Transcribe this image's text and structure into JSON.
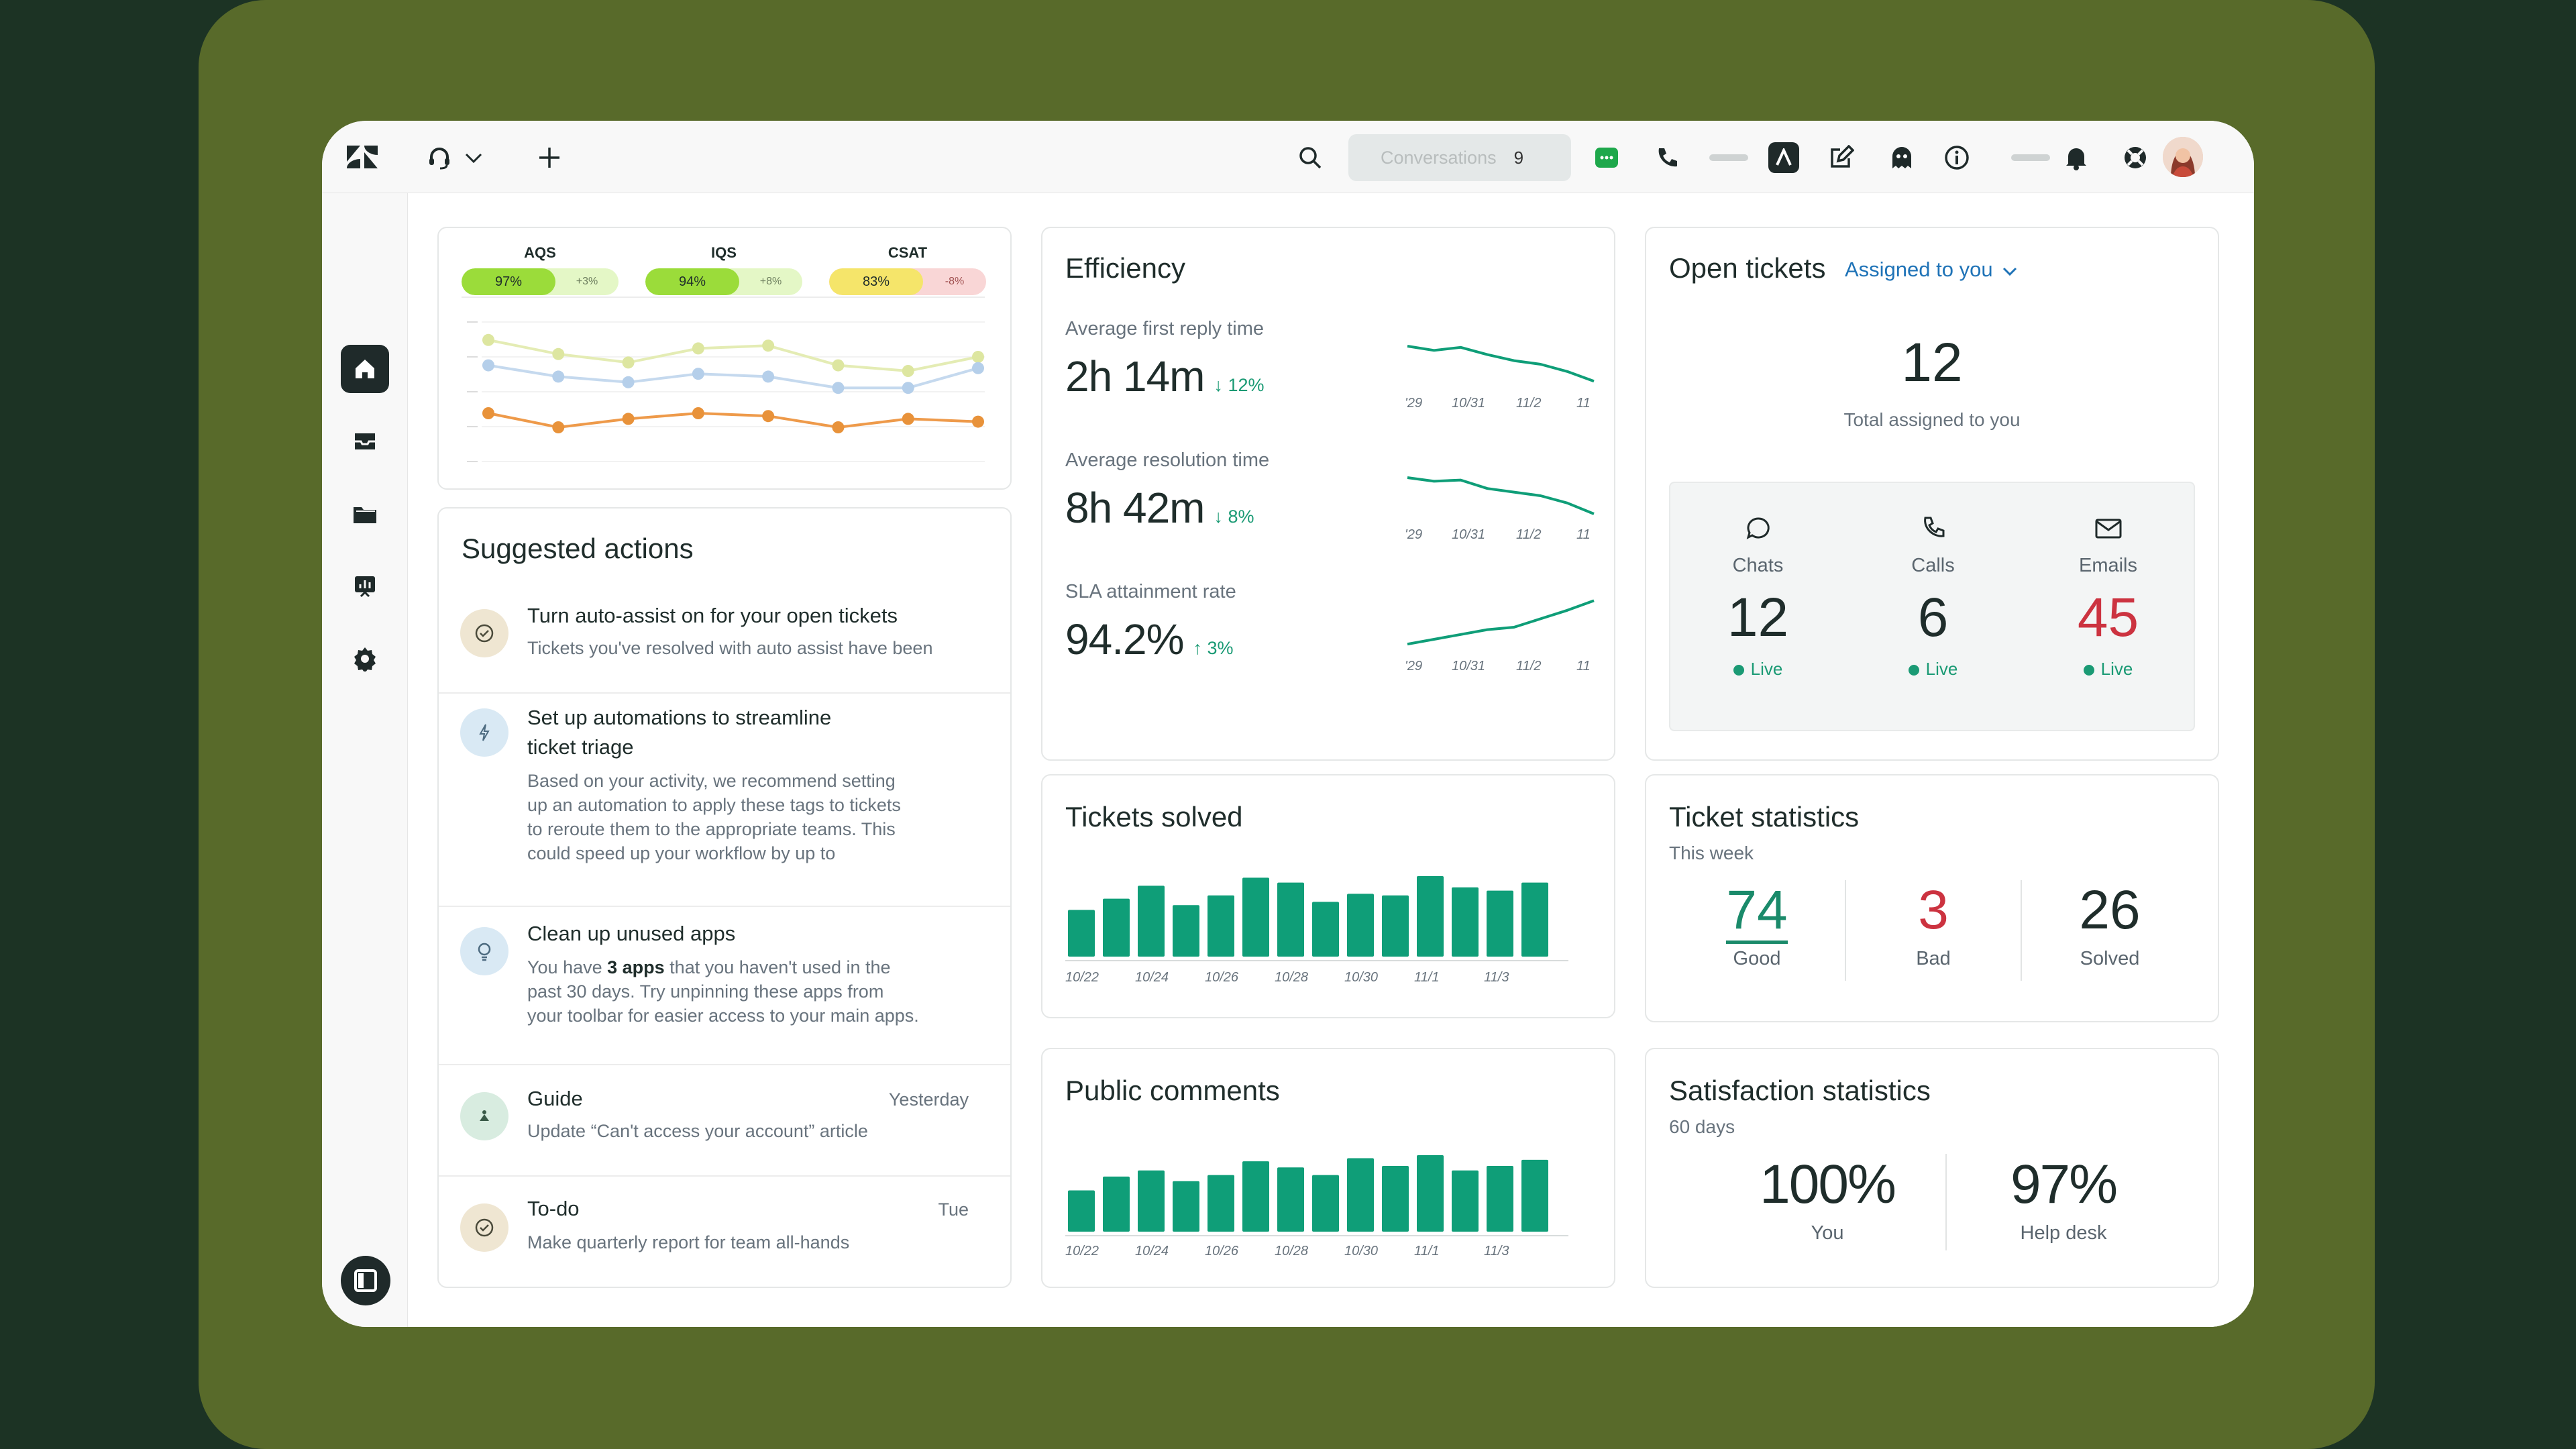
{
  "topbar": {
    "search_placeholder": "Conversations",
    "conversations_count": "9"
  },
  "quality": {
    "metrics": [
      {
        "label": "AQS",
        "value": "97%",
        "delta": "+3%"
      },
      {
        "label": "IQS",
        "value": "94%",
        "delta": "+8%"
      },
      {
        "label": "CSAT",
        "value": "83%",
        "delta": "-8%"
      }
    ]
  },
  "suggested": {
    "title": "Suggested actions",
    "items": [
      {
        "title": "Turn auto-assist on for your open tickets",
        "desc": "Tickets you've resolved with auto assist have been",
        "time": ""
      },
      {
        "title_1": "Set up automations to streamline",
        "title_2": "ticket triage",
        "desc_1": "Based on your activity, we recommend setting",
        "desc_2": "up an automation to apply these tags to tickets",
        "desc_3": "to reroute them to the appropriate teams. This",
        "desc_4": "could speed up your workflow by up to"
      },
      {
        "title": "Clean up unused apps",
        "desc_1a": "You have ",
        "desc_1b": "3 apps",
        "desc_1c": " that you haven't used in the",
        "desc_2": "past 30 days. Try unpinning these apps from",
        "desc_3": "your toolbar for easier access to your main apps."
      },
      {
        "title": "Guide",
        "desc": "Update “Can't access your account” article",
        "time": "Yesterday"
      },
      {
        "title": "To-do",
        "desc": "Make quarterly report for team all-hands",
        "time": "Tue"
      }
    ]
  },
  "efficiency": {
    "title": "Efficiency",
    "ticks": [
      "'29",
      "10/31",
      "11/2",
      "11"
    ],
    "metrics": [
      {
        "label": "Average first reply time",
        "value": "2h 14m",
        "delta": "↓ 12%"
      },
      {
        "label": "Average resolution time",
        "value": "8h 42m",
        "delta": "↓ 8%"
      },
      {
        "label": "SLA attainment rate",
        "value": "94.2%",
        "delta": "↑ 3%"
      }
    ]
  },
  "open_tickets": {
    "title": "Open tickets",
    "filter": "Assigned to you",
    "total": "12",
    "total_label": "Total assigned to you",
    "channels": [
      {
        "label": "Chats",
        "value": "12",
        "status": "Live"
      },
      {
        "label": "Calls",
        "value": "6",
        "status": "Live"
      },
      {
        "label": "Emails",
        "value": "45",
        "status": "Live"
      }
    ]
  },
  "tickets_solved": {
    "title": "Tickets solved",
    "x_ticks": [
      "10/22",
      "10/24",
      "10/26",
      "10/28",
      "10/30",
      "11/1",
      "11/3"
    ]
  },
  "public_comments": {
    "title": "Public comments",
    "x_ticks": [
      "10/22",
      "10/24",
      "10/26",
      "10/28",
      "10/30",
      "11/1",
      "11/3"
    ]
  },
  "ticket_stats": {
    "title": "Ticket statistics",
    "subtitle": "This week",
    "items": [
      {
        "value": "74",
        "label": "Good"
      },
      {
        "value": "3",
        "label": "Bad"
      },
      {
        "value": "26",
        "label": "Solved"
      }
    ]
  },
  "satisfaction": {
    "title": "Satisfaction statistics",
    "subtitle": "60 days",
    "items": [
      {
        "value": "100%",
        "label": "You"
      },
      {
        "value": "97%",
        "label": "Help desk"
      }
    ]
  },
  "colors": {
    "accent": "#1a9a74",
    "bar": "#0f9e78",
    "danger": "#cc3340",
    "link": "#1f73b7"
  },
  "chart_data": [
    {
      "type": "line",
      "series": [
        {
          "values": [
            0.92,
            0.82,
            0.76,
            0.86,
            0.88,
            0.74,
            0.7,
            0.8
          ]
        },
        {
          "values": [
            0.74,
            0.66,
            0.62,
            0.68,
            0.66,
            0.58,
            0.58,
            0.72
          ]
        },
        {
          "values": [
            0.4,
            0.3,
            0.36,
            0.4,
            0.38,
            0.3,
            0.36,
            0.34
          ]
        }
      ]
    },
    {
      "type": "line",
      "series": [
        {
          "values": [
            0.8,
            0.73,
            0.78,
            0.66,
            0.56,
            0.5,
            0.38,
            0.22
          ]
        }
      ]
    },
    {
      "type": "line",
      "series": [
        {
          "values": [
            0.8,
            0.74,
            0.76,
            0.62,
            0.56,
            0.5,
            0.38,
            0.2
          ]
        }
      ]
    },
    {
      "type": "line",
      "series": [
        {
          "values": [
            0.22,
            0.3,
            0.38,
            0.46,
            0.5,
            0.64,
            0.78,
            0.94
          ]
        }
      ]
    },
    {
      "type": "bar",
      "title": "Tickets solved",
      "values": [
        0.58,
        0.72,
        0.88,
        0.64,
        0.76,
        0.98,
        0.92,
        0.68,
        0.78,
        0.76,
        1.0,
        0.86,
        0.82,
        0.92
      ]
    },
    {
      "type": "bar",
      "title": "Public comments",
      "values": [
        0.54,
        0.72,
        0.8,
        0.66,
        0.74,
        0.92,
        0.84,
        0.74,
        0.96,
        0.86,
        1.0,
        0.8,
        0.86,
        0.94
      ]
    }
  ]
}
